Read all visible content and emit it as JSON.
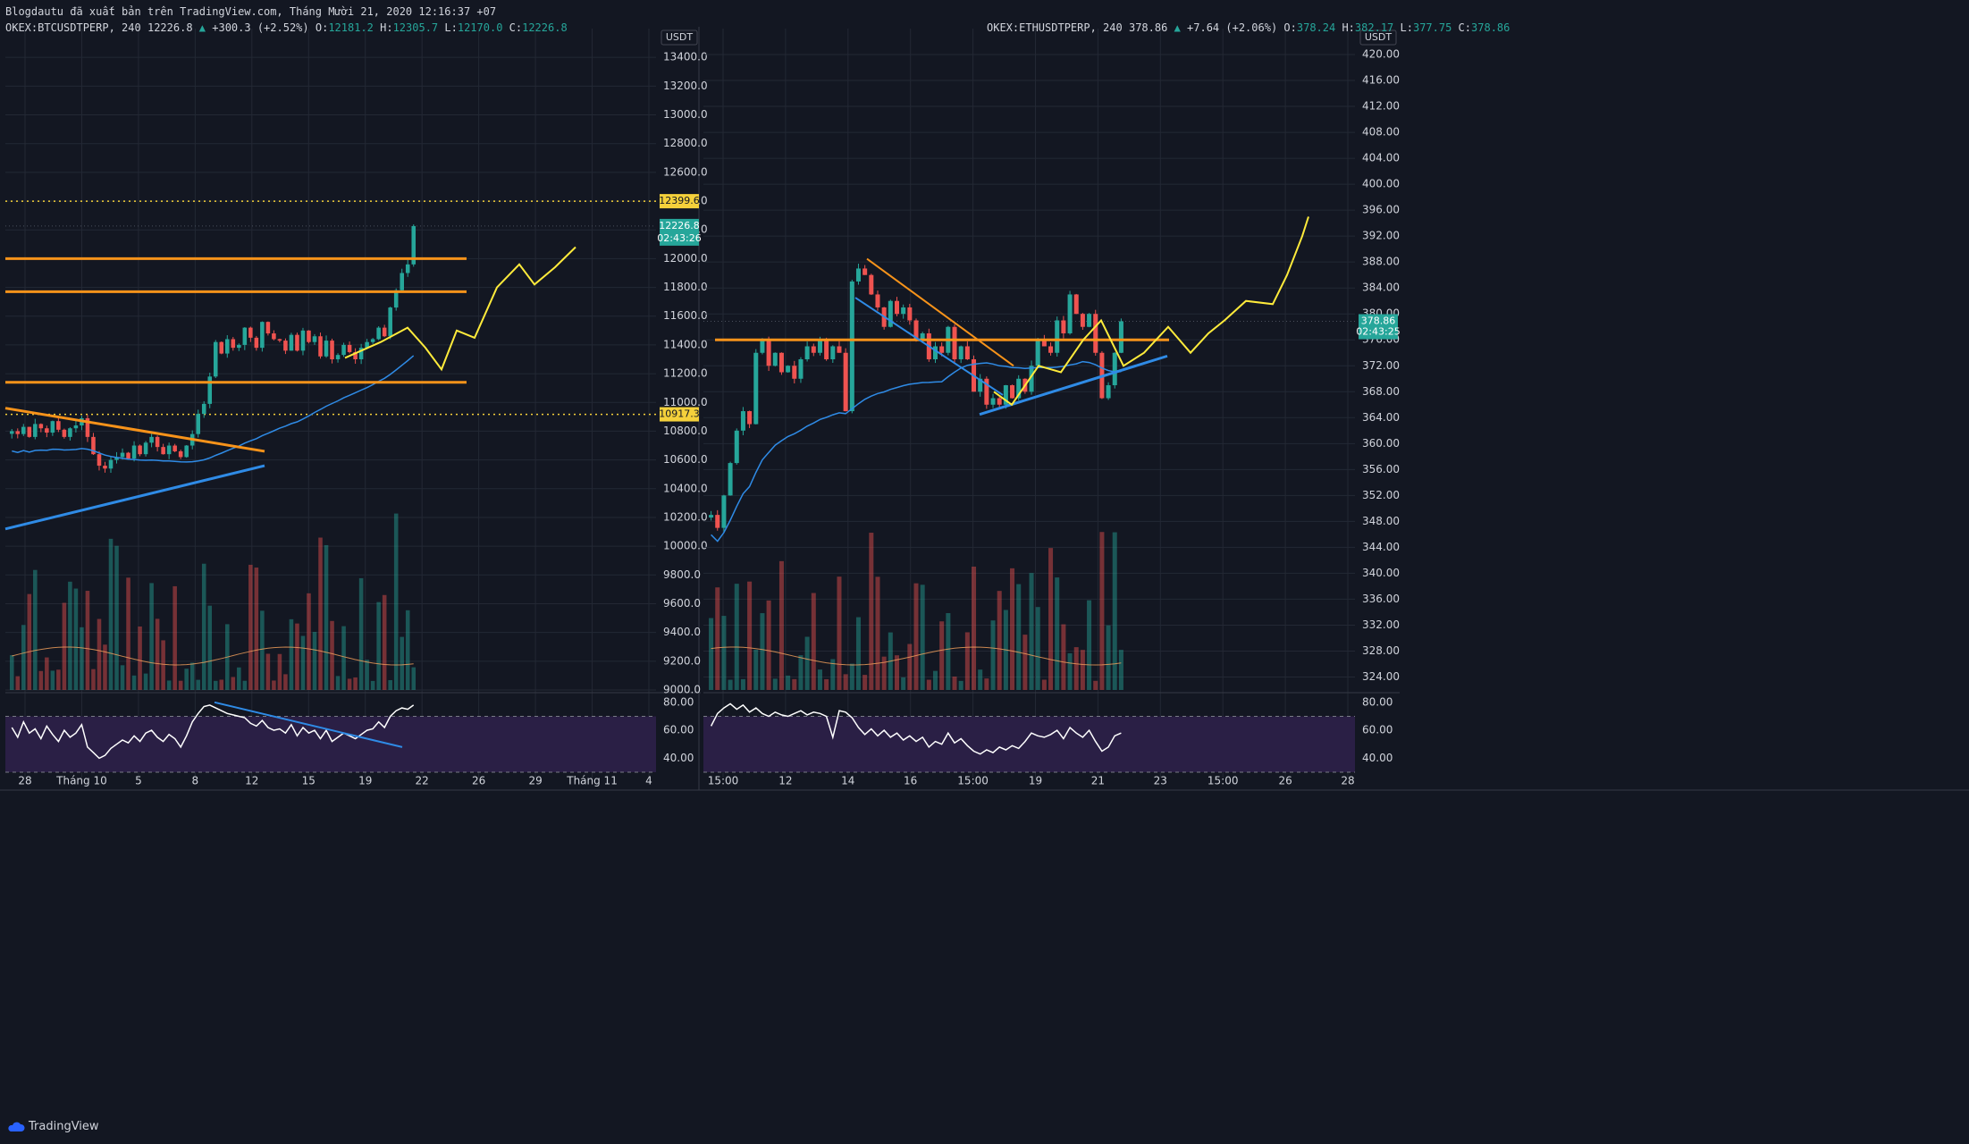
{
  "header": {
    "attribution": "Blogdautu đã xuất bản trên TradingView.com, Tháng Mười 21, 2020 12:16:37 +07"
  },
  "footer": {
    "brand": "TradingView"
  },
  "colors": {
    "background": "#131722",
    "grid": "#232834",
    "up": "#26a69a",
    "down": "#ef5350",
    "level_orange": "#f7931a",
    "trend_blue": "#2f8be6",
    "projection_yellow": "#ffeb3b",
    "dotted_yellow": "#f5d13b",
    "rsi_fill": "#2a1f45",
    "text": "#d1d4dc"
  },
  "chart_data": [
    {
      "type": "candlestick",
      "symbol": "OKEX:BTCUSDTPERP",
      "interval": "240",
      "last": "12226.8",
      "change": "+300.3 (+2.52%)",
      "ohlc": {
        "O": "12181.2",
        "H": "12305.7",
        "L": "12170.0",
        "C": "12226.8"
      },
      "currency": "USDT",
      "ylim": [
        9000,
        13600
      ],
      "y_ticks": [
        "13400.0",
        "13200.0",
        "13000.0",
        "12800.0",
        "12600.0",
        "12400.0",
        "12200.0",
        "12000.0",
        "11800.0",
        "11600.0",
        "11400.0",
        "11200.0",
        "11000.0",
        "10800.0",
        "10600.0",
        "10400.0",
        "10200.0",
        "10000.0",
        "9800.0",
        "9600.0",
        "9400.0",
        "9200.0",
        "9000.0"
      ],
      "x_ticks": [
        "28",
        "Tháng 10",
        "5",
        "8",
        "12",
        "15",
        "19",
        "22",
        "26",
        "29",
        "Tháng 11",
        "4"
      ],
      "price_labels": [
        {
          "value": 12399.6,
          "text": "12399.6",
          "style": "yellow"
        },
        {
          "value": 12226.8,
          "text": "12226.8",
          "style": "green"
        },
        {
          "value": 12140,
          "text": "02:43:26",
          "style": "green"
        },
        {
          "value": 10917.3,
          "text": "10917.3",
          "style": "yellow"
        }
      ],
      "horizontal_levels": [
        12399.6,
        10917.3
      ],
      "resistance_levels": [
        12000,
        11770,
        11140
      ],
      "close_path": [
        10800,
        10780,
        10830,
        10760,
        10850,
        10820,
        10790,
        10870,
        10810,
        10760,
        10820,
        10840,
        10890,
        10760,
        10640,
        10560,
        10540,
        10600,
        10620,
        10650,
        10610,
        10700,
        10640,
        10720,
        10760,
        10690,
        10640,
        10700,
        10660,
        10620,
        10700,
        10780,
        10920,
        10990,
        11180,
        11420,
        11340,
        11440,
        11380,
        11400,
        11520,
        11450,
        11380,
        11560,
        11480,
        11440,
        11430,
        11360,
        11470,
        11360,
        11500,
        11420,
        11460,
        11320,
        11430,
        11300,
        11330,
        11400,
        11350,
        11300,
        11380,
        11420,
        11440,
        11520,
        11460,
        11660,
        11780,
        11900,
        11960,
        12226.8
      ],
      "rsi": {
        "ylim": [
          30,
          85
        ],
        "ticks": [
          "80.00",
          "60.00",
          "40.00"
        ],
        "upper": 70,
        "lower": 30,
        "values": [
          62,
          55,
          66,
          58,
          61,
          54,
          63,
          57,
          52,
          60,
          55,
          58,
          64,
          48,
          44,
          40,
          42,
          47,
          50,
          53,
          51,
          56,
          52,
          58,
          60,
          55,
          52,
          57,
          54,
          48,
          56,
          66,
          72,
          77,
          78,
          76,
          74,
          72,
          71,
          70,
          69,
          65,
          63,
          67,
          62,
          60,
          61,
          58,
          64,
          56,
          62,
          58,
          60,
          54,
          60,
          52,
          55,
          58,
          56,
          54,
          57,
          60,
          61,
          66,
          62,
          70,
          74,
          76,
          75,
          78
        ]
      }
    },
    {
      "type": "candlestick",
      "symbol": "OKEX:ETHUSDTPERP",
      "interval": "240",
      "last": "378.86",
      "change": "+7.64 (+2.06%)",
      "ohlc": {
        "O": "378.24",
        "H": "382.17",
        "L": "377.75",
        "C": "378.86"
      },
      "currency": "USDT",
      "ylim": [
        322,
        424
      ],
      "y_ticks": [
        "420.00",
        "416.00",
        "412.00",
        "408.00",
        "404.00",
        "400.00",
        "396.00",
        "392.00",
        "388.00",
        "384.00",
        "380.00",
        "376.00",
        "372.00",
        "368.00",
        "364.00",
        "360.00",
        "356.00",
        "352.00",
        "348.00",
        "344.00",
        "340.00",
        "336.00",
        "332.00",
        "328.00",
        "324.00"
      ],
      "x_ticks": [
        "15:00",
        "12",
        "14",
        "16",
        "15:00",
        "19",
        "21",
        "23",
        "15:00",
        "26",
        "28"
      ],
      "price_labels": [
        {
          "value": 378.86,
          "text": "378.86",
          "style": "green"
        },
        {
          "value": 377.2,
          "text": "02:43:25",
          "style": "green"
        }
      ],
      "resistance_levels": [
        376.0
      ],
      "close_path": [
        349,
        347,
        352,
        357,
        362,
        365,
        363,
        374,
        376,
        372,
        374,
        371,
        372,
        370,
        373,
        375,
        374,
        376,
        373,
        375,
        374,
        365,
        385,
        387,
        386,
        383,
        381,
        378,
        382,
        380,
        381,
        379,
        376,
        377,
        373,
        375,
        374,
        378,
        373,
        375,
        373,
        368,
        370,
        366,
        367,
        366,
        369,
        367,
        370,
        368,
        372,
        376,
        375,
        374,
        379,
        377,
        383,
        380,
        378,
        380,
        374,
        367,
        369,
        374,
        378.86
      ],
      "rsi": {
        "ylim": [
          30,
          85
        ],
        "ticks": [
          "80.00",
          "60.00",
          "40.00"
        ],
        "upper": 70,
        "lower": 30,
        "values": [
          63,
          72,
          76,
          79,
          75,
          78,
          73,
          76,
          72,
          70,
          73,
          71,
          70,
          72,
          74,
          71,
          73,
          72,
          70,
          55,
          74,
          73,
          69,
          62,
          57,
          61,
          56,
          60,
          55,
          58,
          53,
          56,
          52,
          55,
          48,
          52,
          50,
          58,
          51,
          54,
          49,
          45,
          43,
          46,
          44,
          48,
          46,
          49,
          47,
          52,
          58,
          56,
          55,
          57,
          60,
          54,
          62,
          58,
          55,
          60,
          52,
          45,
          48,
          56,
          58
        ]
      }
    }
  ]
}
